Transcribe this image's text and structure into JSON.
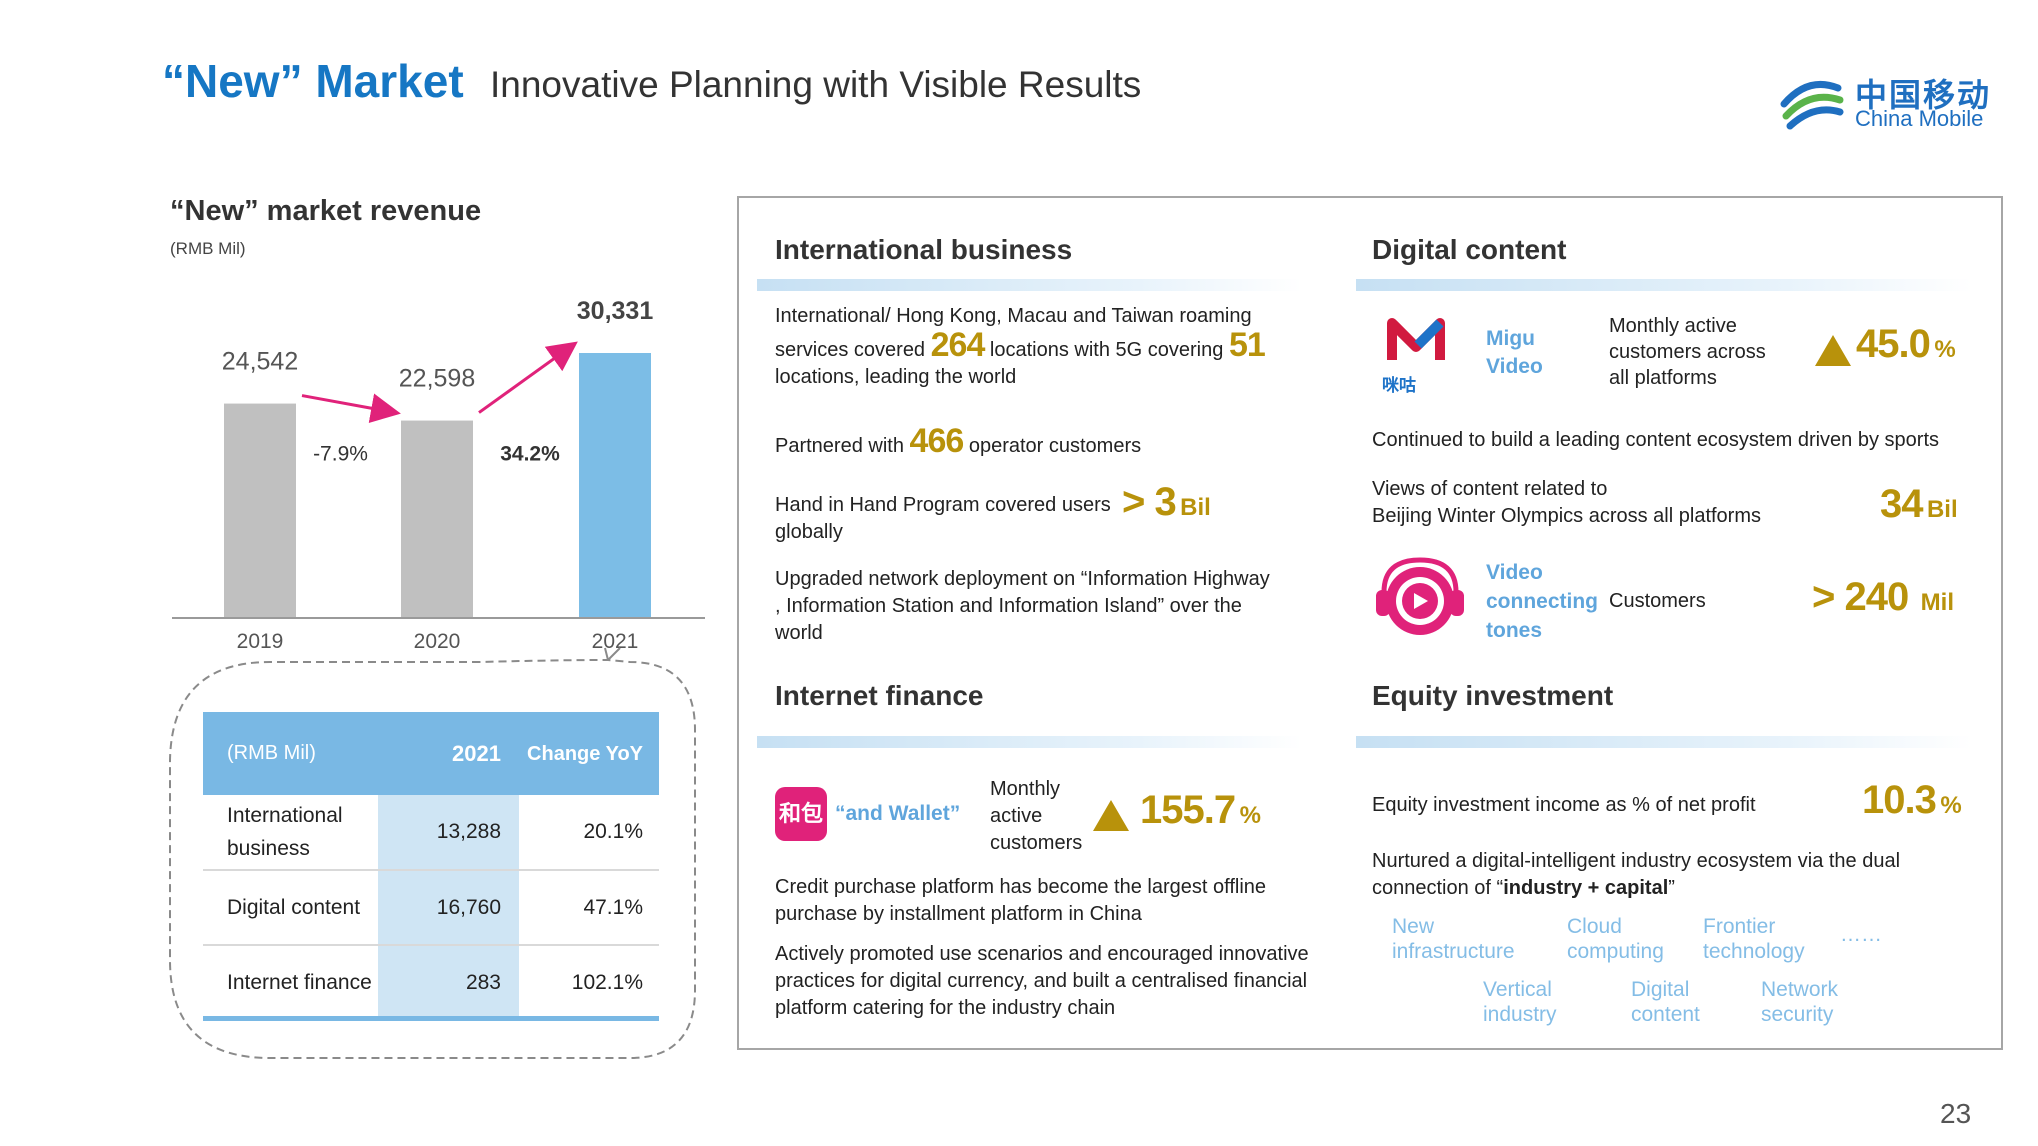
{
  "header": {
    "title_bold": "“New” Market",
    "title_sub": "Innovative Planning with Visible Results",
    "logo_cn": "中国移动",
    "logo_en": "China Mobile"
  },
  "page_number": "23",
  "chart_data": {
    "type": "bar",
    "title": "“New” market revenue",
    "unit": "(RMB Mil)",
    "categories": [
      "2019",
      "2020",
      "2021"
    ],
    "values": [
      24542,
      22598,
      30331
    ],
    "value_labels": [
      "24,542",
      "22,598",
      "30,331"
    ],
    "colors": [
      "#c0c0c0",
      "#c0c0c0",
      "#7cbde6"
    ],
    "growth_labels": [
      "-7.9%",
      "34.2%"
    ],
    "arrow_color": "#e0227a"
  },
  "detail_table": {
    "headers": [
      "(RMB Mil)",
      "2021",
      "Change YoY"
    ],
    "rows": [
      {
        "label": "International business",
        "value": "13,288",
        "change": "20.1%"
      },
      {
        "label": "Digital content",
        "value": "16,760",
        "change": "47.1%"
      },
      {
        "label": "Internet finance",
        "value": "283",
        "change": "102.1%"
      }
    ]
  },
  "international": {
    "title": "International business",
    "roaming_l1": "International/ Hong Kong, Macau and Taiwan roaming",
    "roaming_a": "services covered",
    "roaming_n1": "264",
    "roaming_b": "locations with 5G covering",
    "roaming_n2": "51",
    "roaming_c": "locations, leading the world",
    "partner_a": "Partnered with",
    "partner_n": "466",
    "partner_b": "operator customers",
    "hand_l1": "Hand in Hand Program covered users",
    "hand_l2": "globally",
    "hand_value": "> 3",
    "hand_unit": "Bil",
    "upgrade": "Upgraded network deployment on “Information Highway , Information Station and Information Island” over the world"
  },
  "digital": {
    "title": "Digital content",
    "migu_label_1": "Migu",
    "migu_label_2": "Video",
    "migu_logo_text": "咪咕",
    "migu_desc": "Monthly active customers across all platforms",
    "migu_value": "45.0",
    "migu_unit": "%",
    "ecosystem": "Continued to build a leading content ecosystem driven by sports",
    "views_l1": "Views of content related to",
    "views_l2": "Beijing Winter Olympics across all platforms",
    "views_value": "34",
    "views_unit": "Bil",
    "vct_l1": "Video",
    "vct_l2": "connecting",
    "vct_l3": "tones",
    "vct_desc": "Customers",
    "vct_value": "> 240",
    "vct_unit": "Mil"
  },
  "finance": {
    "title": "Internet finance",
    "wallet_label": "“and Wallet”",
    "wallet_logo": "和包",
    "wallet_desc": "Monthly active customers",
    "wallet_value": "155.7",
    "wallet_unit": "%",
    "credit": "Credit purchase platform has become the largest offline purchase by installment platform in China",
    "currency": "Actively promoted use scenarios and encouraged innovative practices for digital currency, and built a centralised financial platform catering for the industry chain"
  },
  "equity": {
    "title": "Equity investment",
    "income_label": "Equity investment income as % of net profit",
    "income_value": "10.3",
    "income_unit": "%",
    "nurtured_l1": "Nurtured a digital-intelligent industry ecosystem via the dual",
    "nurtured_a": "connection of “",
    "nurtured_bold": "industry + capital",
    "nurtured_b": "”",
    "tags_row1": [
      "New infrastructure",
      "Cloud computing",
      "Frontier technology",
      "……"
    ],
    "tags_row2": [
      "Vertical industry",
      "Digital content",
      "Network security"
    ]
  }
}
